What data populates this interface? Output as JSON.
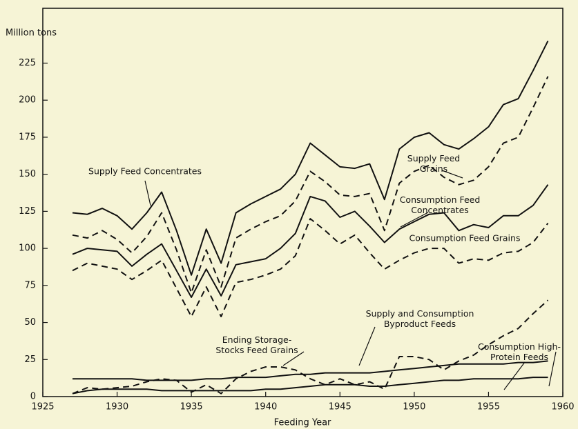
{
  "chart_data": {
    "type": "line",
    "ylabel": "Million tons",
    "xlabel": "Feeding Year",
    "xlim": [
      1925,
      1960
    ],
    "xticks": [
      1925,
      1930,
      1935,
      1940,
      1945,
      1950,
      1955,
      1960
    ],
    "ylim": [
      0,
      262
    ],
    "yticks": [
      0,
      25,
      50,
      75,
      100,
      125,
      150,
      175,
      200,
      225
    ],
    "grid": false,
    "x": [
      1927,
      1928,
      1929,
      1930,
      1931,
      1932,
      1933,
      1934,
      1935,
      1936,
      1937,
      1938,
      1939,
      1940,
      1941,
      1942,
      1943,
      1944,
      1945,
      1946,
      1947,
      1948,
      1949,
      1950,
      1951,
      1952,
      1953,
      1954,
      1955,
      1956,
      1957,
      1958,
      1959
    ],
    "series": [
      {
        "name": "Supply Feed Concentrates",
        "color": "#111111",
        "line_style": "solid",
        "values": [
          124,
          123,
          127,
          122,
          113,
          124,
          138,
          112,
          82,
          113,
          90,
          124,
          130,
          135,
          140,
          150,
          171,
          163,
          155,
          154,
          157,
          133,
          167,
          175,
          178,
          170,
          167,
          174,
          182,
          197,
          201,
          220,
          240
        ]
      },
      {
        "name": "Supply Feed Grains",
        "color": "#111111",
        "line_style": "dashed",
        "values": [
          109,
          107,
          112,
          106,
          97,
          108,
          124,
          99,
          70,
          99,
          74,
          107,
          113,
          118,
          122,
          132,
          152,
          145,
          136,
          135,
          137,
          112,
          144,
          152,
          156,
          148,
          143,
          146,
          155,
          171,
          175,
          195,
          216
        ]
      },
      {
        "name": "Consumption Feed Concentrates",
        "color": "#111111",
        "line_style": "solid",
        "values": [
          96,
          100,
          99,
          98,
          88,
          96,
          103,
          85,
          67,
          86,
          68,
          89,
          91,
          93,
          100,
          110,
          135,
          132,
          121,
          125,
          115,
          104,
          113,
          118,
          123,
          124,
          112,
          116,
          114,
          122,
          122,
          129,
          143
        ]
      },
      {
        "name": "Consumption Feed Grains",
        "color": "#111111",
        "line_style": "dashed",
        "values": [
          85,
          90,
          88,
          86,
          79,
          85,
          92,
          73,
          54,
          74,
          54,
          77,
          79,
          82,
          86,
          95,
          120,
          112,
          103,
          109,
          97,
          86,
          92,
          97,
          100,
          100,
          90,
          93,
          92,
          97,
          98,
          104,
          117
        ]
      },
      {
        "name": "Supply and Consumption Byproduct Feeds",
        "color": "#111111",
        "line_style": "solid",
        "values": [
          12,
          12,
          12,
          12,
          12,
          11,
          11,
          11,
          11,
          12,
          12,
          13,
          13,
          13,
          14,
          15,
          15,
          16,
          16,
          16,
          16,
          17,
          18,
          19,
          20,
          21,
          22,
          22,
          22,
          22,
          23,
          23,
          24
        ]
      },
      {
        "name": "Ending Storage-Stocks Feed Grains",
        "color": "#111111",
        "line_style": "dashed",
        "values": [
          2,
          6,
          5,
          6,
          7,
          10,
          12,
          11,
          3,
          8,
          2,
          12,
          17,
          20,
          20,
          18,
          12,
          8,
          12,
          8,
          10,
          5,
          27,
          27,
          25,
          18,
          24,
          28,
          35,
          41,
          46,
          56,
          65
        ]
      },
      {
        "name": "Consumption High-Protein Feeds",
        "color": "#111111",
        "line_style": "solid",
        "values": [
          2,
          4,
          5,
          5,
          5,
          5,
          4,
          4,
          4,
          4,
          4,
          4,
          4,
          5,
          5,
          6,
          7,
          8,
          8,
          8,
          7,
          7,
          8,
          9,
          10,
          11,
          11,
          12,
          12,
          12,
          12,
          13,
          13
        ]
      }
    ]
  }
}
